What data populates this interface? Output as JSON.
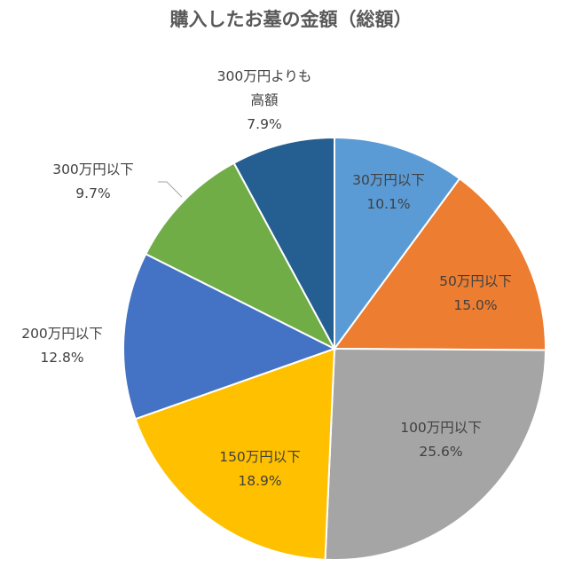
{
  "chart_data": {
    "type": "pie",
    "title": "購入したお墓の金額（総額）",
    "slices": [
      {
        "label": "30万円以下",
        "value": 10.1,
        "value_label": "10.1%",
        "color": "#5B9BD5"
      },
      {
        "label": "50万円以下",
        "value": 15.0,
        "value_label": "15.0%",
        "color": "#ED7D31"
      },
      {
        "label": "100万円以下",
        "value": 25.6,
        "value_label": "25.6%",
        "color": "#A5A5A5"
      },
      {
        "label": "150万円以下",
        "value": 18.9,
        "value_label": "18.9%",
        "color": "#FFC000"
      },
      {
        "label": "200万円以下",
        "value": 12.8,
        "value_label": "12.8%",
        "color": "#4472C4"
      },
      {
        "label": "300万円以下",
        "value": 9.7,
        "value_label": "9.7%",
        "color": "#70AD47"
      },
      {
        "label_lines": [
          "300万円よりも",
          "高額"
        ],
        "value": 7.9,
        "value_label": "7.9%",
        "color": "#255E91"
      }
    ],
    "start": "12 o'clock",
    "direction": "clockwise",
    "legend": "none"
  }
}
